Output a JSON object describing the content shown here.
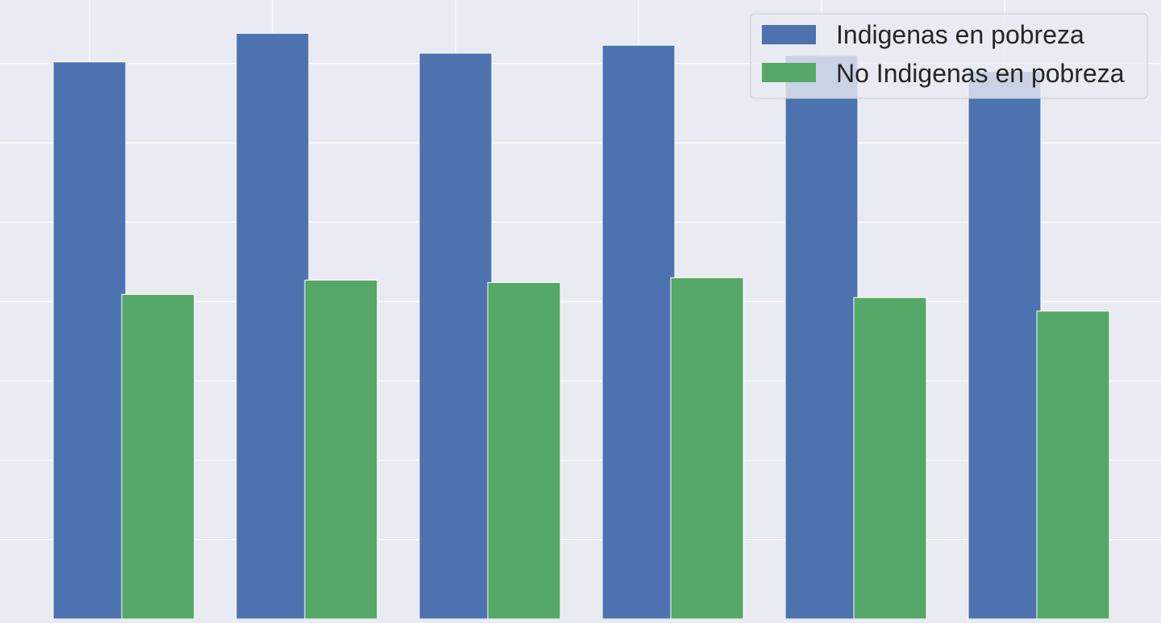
{
  "chart_data": {
    "type": "bar",
    "categories": [
      "",
      "",
      "",
      "",
      "",
      ""
    ],
    "series": [
      {
        "name": "Indigenas en pobreza",
        "values": [
          70.2,
          73.8,
          71.3,
          72.3,
          71.0,
          69.0
        ],
        "color": "#4c72b0"
      },
      {
        "name": "No Indigenas en pobreza",
        "values": [
          40.9,
          42.7,
          42.4,
          43.0,
          40.5,
          38.8
        ],
        "color": "#55a868"
      }
    ],
    "ylim": [
      0,
      78
    ],
    "yticks": [
      10,
      20,
      30,
      40,
      50,
      60,
      70
    ],
    "grid": true,
    "legend": "top-right",
    "background": "#eaeaf2",
    "grid_color": "#ffffff"
  }
}
